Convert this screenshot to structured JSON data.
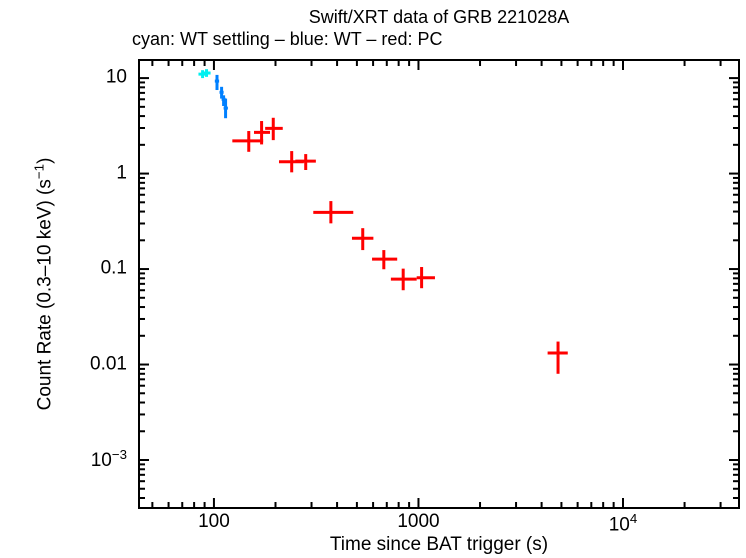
{
  "chart_data": {
    "type": "scatter",
    "title": "Swift/XRT data of GRB 221028A",
    "subtitle": "cyan: WT settling – blue: WT – red: PC",
    "xlabel": "Time since BAT trigger (s)",
    "ylabel": "Count Rate (0.3–10 keV) (s^{−1})",
    "xscale": "log",
    "yscale": "log",
    "xlim": [
      43.5,
      36500
    ],
    "ylim": [
      0.000322,
      15.1
    ],
    "grid": false,
    "frame_color": "#000000",
    "x_ticks": [
      {
        "v": 100,
        "label": "100"
      },
      {
        "v": 1000,
        "label": "1000"
      },
      {
        "v": 10000,
        "label": "10^{4}"
      }
    ],
    "y_ticks": [
      {
        "v": 10,
        "label": "10"
      },
      {
        "v": 1,
        "label": "1"
      },
      {
        "v": 0.1,
        "label": "0.1"
      },
      {
        "v": 0.01,
        "label": "0.01"
      },
      {
        "v": 0.001,
        "label": "10^{−3}"
      }
    ],
    "series": [
      {
        "key": "wt-settling",
        "name": "WT settling",
        "color": "#00f0f0",
        "points": [
          {
            "t": 88,
            "t_lo": 84,
            "t_hi": 92,
            "r": 11.0,
            "r_lo": 10.0,
            "r_hi": 12.1
          },
          {
            "t": 92,
            "t_lo": 88,
            "t_hi": 96.3,
            "r": 11.3,
            "r_lo": 10.3,
            "r_hi": 12.4
          }
        ]
      },
      {
        "key": "wt",
        "name": "WT",
        "color": "#0080ff",
        "points": [
          {
            "t": 103.5,
            "t_lo": 101,
            "t_hi": 106,
            "r": 9.3,
            "r_lo": 7.5,
            "r_hi": 10.8
          },
          {
            "t": 109,
            "t_lo": 106.5,
            "t_hi": 111.5,
            "r": 7.1,
            "r_lo": 6.1,
            "r_hi": 8.1
          },
          {
            "t": 111.5,
            "t_lo": 109,
            "t_hi": 114,
            "r": 6.0,
            "r_lo": 5.1,
            "r_hi": 6.6
          },
          {
            "t": 114,
            "t_lo": 111.5,
            "t_hi": 117,
            "r": 4.85,
            "r_lo": 3.8,
            "r_hi": 6.1
          }
        ]
      },
      {
        "key": "pc",
        "name": "PC",
        "color": "#ff0000",
        "points": [
          {
            "t": 148,
            "t_lo": 123,
            "t_hi": 174,
            "r": 2.2,
            "r_lo": 1.69,
            "r_hi": 2.79
          },
          {
            "t": 171,
            "t_lo": 157,
            "t_hi": 188,
            "r": 2.7,
            "r_lo": 2.02,
            "r_hi": 3.55
          },
          {
            "t": 195,
            "t_lo": 178,
            "t_hi": 217,
            "r": 2.97,
            "r_lo": 2.24,
            "r_hi": 3.84
          },
          {
            "t": 240,
            "t_lo": 208,
            "t_hi": 275,
            "r": 1.33,
            "r_lo": 1.03,
            "r_hi": 1.72
          },
          {
            "t": 281,
            "t_lo": 250,
            "t_hi": 315,
            "r": 1.35,
            "r_lo": 1.09,
            "r_hi": 1.6
          },
          {
            "t": 373,
            "t_lo": 306,
            "t_hi": 480,
            "r": 0.392,
            "r_lo": 0.301,
            "r_hi": 0.515
          },
          {
            "t": 534,
            "t_lo": 473,
            "t_hi": 602,
            "r": 0.21,
            "r_lo": 0.158,
            "r_hi": 0.268
          },
          {
            "t": 677,
            "t_lo": 593,
            "t_hi": 787,
            "r": 0.127,
            "r_lo": 0.0995,
            "r_hi": 0.158
          },
          {
            "t": 842,
            "t_lo": 733,
            "t_hi": 980,
            "r": 0.0785,
            "r_lo": 0.06,
            "r_hi": 0.101
          },
          {
            "t": 1036,
            "t_lo": 980,
            "t_hi": 1204,
            "r": 0.081,
            "r_lo": 0.063,
            "r_hi": 0.105
          },
          {
            "t": 4813,
            "t_lo": 4280,
            "t_hi": 5370,
            "r": 0.0132,
            "r_lo": 0.008,
            "r_hi": 0.0174
          }
        ]
      }
    ]
  }
}
